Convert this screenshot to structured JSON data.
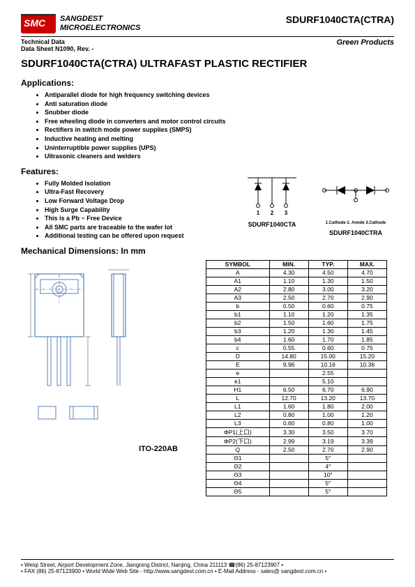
{
  "header": {
    "company_l1": "SANGDEST",
    "company_l2": "MICROELECTRONICS",
    "partno": "SDURF1040CTA(CTRA)"
  },
  "subhead": {
    "tech_l1": "Technical Data",
    "tech_l2": "Data Sheet N1090, Rev. -",
    "green": "Green Products"
  },
  "title": "SDURF1040CTA(CTRA) ULTRAFAST PLASTIC RECTIFIER",
  "applications": {
    "heading": "Applications:",
    "items": [
      "Antiparallel diode for high frequency switching devices",
      "Anti saturation diode",
      "Snubber diode",
      "Free wheeling diode in converters and motor control circuits",
      "Rectifiers in switch mode power supplies (SMPS)",
      "Inductive heating and melting",
      "Uninterruptible power supplies (UPS)",
      "Ultrasonic cleaners and welders"
    ]
  },
  "features": {
    "heading": "Features:",
    "items": [
      "Fully Molded Isolation",
      "Ultra-Fast Recovery",
      "Low Forward Voltage Drop",
      "High Surge Capability",
      "This is a Pb − Free Device",
      "All SMC parts are traceable to the wafer lot",
      "Additional testing can be offered upon request"
    ]
  },
  "schematics": {
    "left_label": "SDURF1040CTA",
    "right_label": "SDURF1040CTRA",
    "pins_num": [
      "1",
      "2",
      "3"
    ],
    "pins_named": "1.Cathode   2. Anode   3.Cathode"
  },
  "mech": {
    "heading": "Mechanical Dimensions: In mm",
    "package": "ITO-220AB"
  },
  "dim_table": {
    "headers": [
      "SYMBOL",
      "MIN.",
      "TYP.",
      "MAX."
    ],
    "rows": [
      [
        "A",
        "4.30",
        "4.50",
        "4.70"
      ],
      [
        "A1",
        "1.10",
        "1.30",
        "1.50"
      ],
      [
        "A2",
        "2.80",
        "3.00",
        "3.20"
      ],
      [
        "A3",
        "2.50",
        "2.70",
        "2.90"
      ],
      [
        "b",
        "0.50",
        "0.60",
        "0.75"
      ],
      [
        "b1",
        "1.10",
        "1.20",
        "1.35"
      ],
      [
        "b2",
        "1.50",
        "1.60",
        "1.75"
      ],
      [
        "b3",
        "1.20",
        "1.30",
        "1.45"
      ],
      [
        "b4",
        "1.60",
        "1.70",
        "1.85"
      ],
      [
        "c",
        "0.55",
        "0.60",
        "0.75"
      ],
      [
        "D",
        "14.80",
        "15.00",
        "15.20"
      ],
      [
        "E",
        "9.96",
        "10.16",
        "10.36"
      ],
      [
        "e",
        "",
        "2.55",
        ""
      ],
      [
        "e1",
        "",
        "5.10",
        ""
      ],
      [
        "H1",
        "6.50",
        "6.70",
        "6.90"
      ],
      [
        "L",
        "12.70",
        "13.20",
        "13.70"
      ],
      [
        "L1",
        "1.60",
        "1.80",
        "2.00"
      ],
      [
        "L2",
        "0.80",
        "1.00",
        "1.20"
      ],
      [
        "L3",
        "0.60",
        "0.80",
        "1.00"
      ],
      [
        "ΦP1(上口)",
        "3.30",
        "3.50",
        "3.70"
      ],
      [
        "ΦP2(下口)",
        "2.99",
        "3.19",
        "3.39"
      ],
      [
        "Q",
        "2.50",
        "2.70",
        "2.90"
      ],
      [
        "Θ1",
        "",
        "5°",
        ""
      ],
      [
        "Θ2",
        "",
        "4°",
        ""
      ],
      [
        "Θ3",
        "",
        "10°",
        ""
      ],
      [
        "Θ4",
        "",
        "5°",
        ""
      ],
      [
        "Θ5",
        "",
        "5°",
        ""
      ]
    ]
  },
  "footer": {
    "l1": "• Weiqi Street, Airport Development Zone, Jiangning District, Nanjing, China 211113 ☎(86) 25-87123907 •",
    "l2": "• FAX (86) 25-87123900 • World Wide Web Site - http://www.sangdest.com.cn • E-Mail Address - sales@ sangdest.com.cn •"
  },
  "colors": {
    "logo_red": "#c00",
    "drawing_blue": "#5b7fb8",
    "drawing_gray": "#999"
  }
}
